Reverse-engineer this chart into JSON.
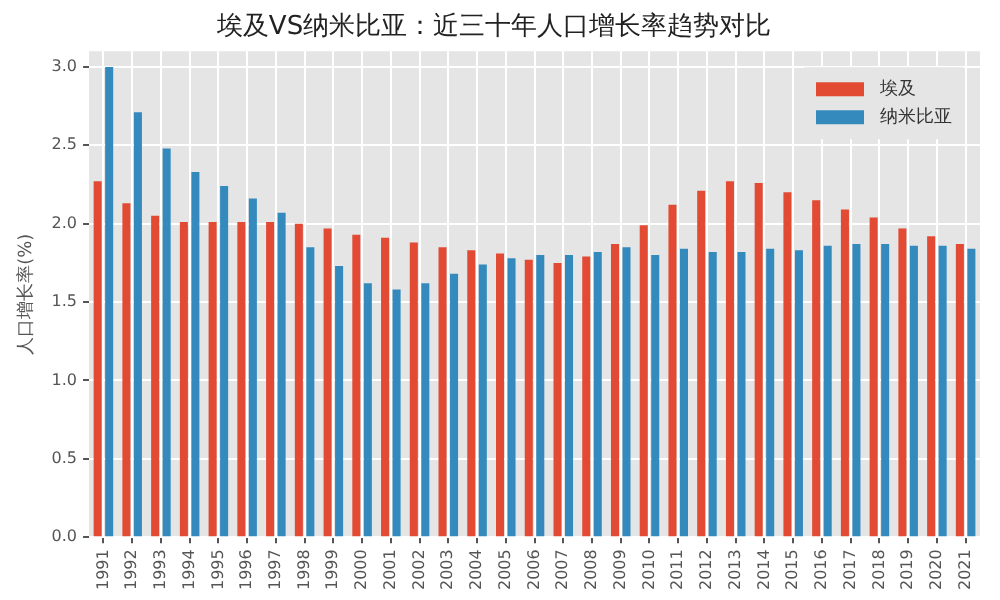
{
  "chart_data": {
    "type": "bar",
    "title": "埃及VS纳米比亚：近三十年人口增长率趋势对比",
    "ylabel": "人口增长率(%)",
    "categories": [
      "1991",
      "1992",
      "1993",
      "1994",
      "1995",
      "1996",
      "1997",
      "1998",
      "1999",
      "2000",
      "2001",
      "2002",
      "2003",
      "2004",
      "2005",
      "2006",
      "2007",
      "2008",
      "2009",
      "2010",
      "2011",
      "2012",
      "2013",
      "2014",
      "2015",
      "2016",
      "2017",
      "2018",
      "2019",
      "2020",
      "2021"
    ],
    "series": [
      {
        "name": "埃及",
        "color": "#e24a33",
        "values": [
          2.27,
          2.13,
          2.05,
          2.01,
          2.01,
          2.01,
          2.01,
          2.0,
          1.97,
          1.93,
          1.91,
          1.88,
          1.85,
          1.83,
          1.81,
          1.77,
          1.75,
          1.79,
          1.87,
          1.99,
          2.12,
          2.21,
          2.27,
          2.26,
          2.2,
          2.15,
          2.09,
          2.04,
          1.97,
          1.92,
          1.87
        ]
      },
      {
        "name": "纳米比亚",
        "color": "#348abd",
        "values": [
          3.0,
          2.71,
          2.48,
          2.33,
          2.24,
          2.16,
          2.07,
          1.85,
          1.73,
          1.62,
          1.58,
          1.62,
          1.68,
          1.74,
          1.78,
          1.8,
          1.8,
          1.82,
          1.85,
          1.8,
          1.84,
          1.82,
          1.82,
          1.84,
          1.83,
          1.86,
          1.87,
          1.87,
          1.86,
          1.86,
          1.84
        ]
      }
    ],
    "ylim": [
      0,
      3.1
    ],
    "yticks": [
      {
        "value": 0,
        "label": "0.0"
      },
      {
        "value": 0.5,
        "label": "0.5"
      },
      {
        "value": 1,
        "label": "1.0"
      },
      {
        "value": 1.5,
        "label": "1.5"
      },
      {
        "value": 2,
        "label": "2.0"
      },
      {
        "value": 2.5,
        "label": "2.5"
      },
      {
        "value": 3,
        "label": "3.0"
      }
    ],
    "grid": true,
    "legend": "top right"
  }
}
